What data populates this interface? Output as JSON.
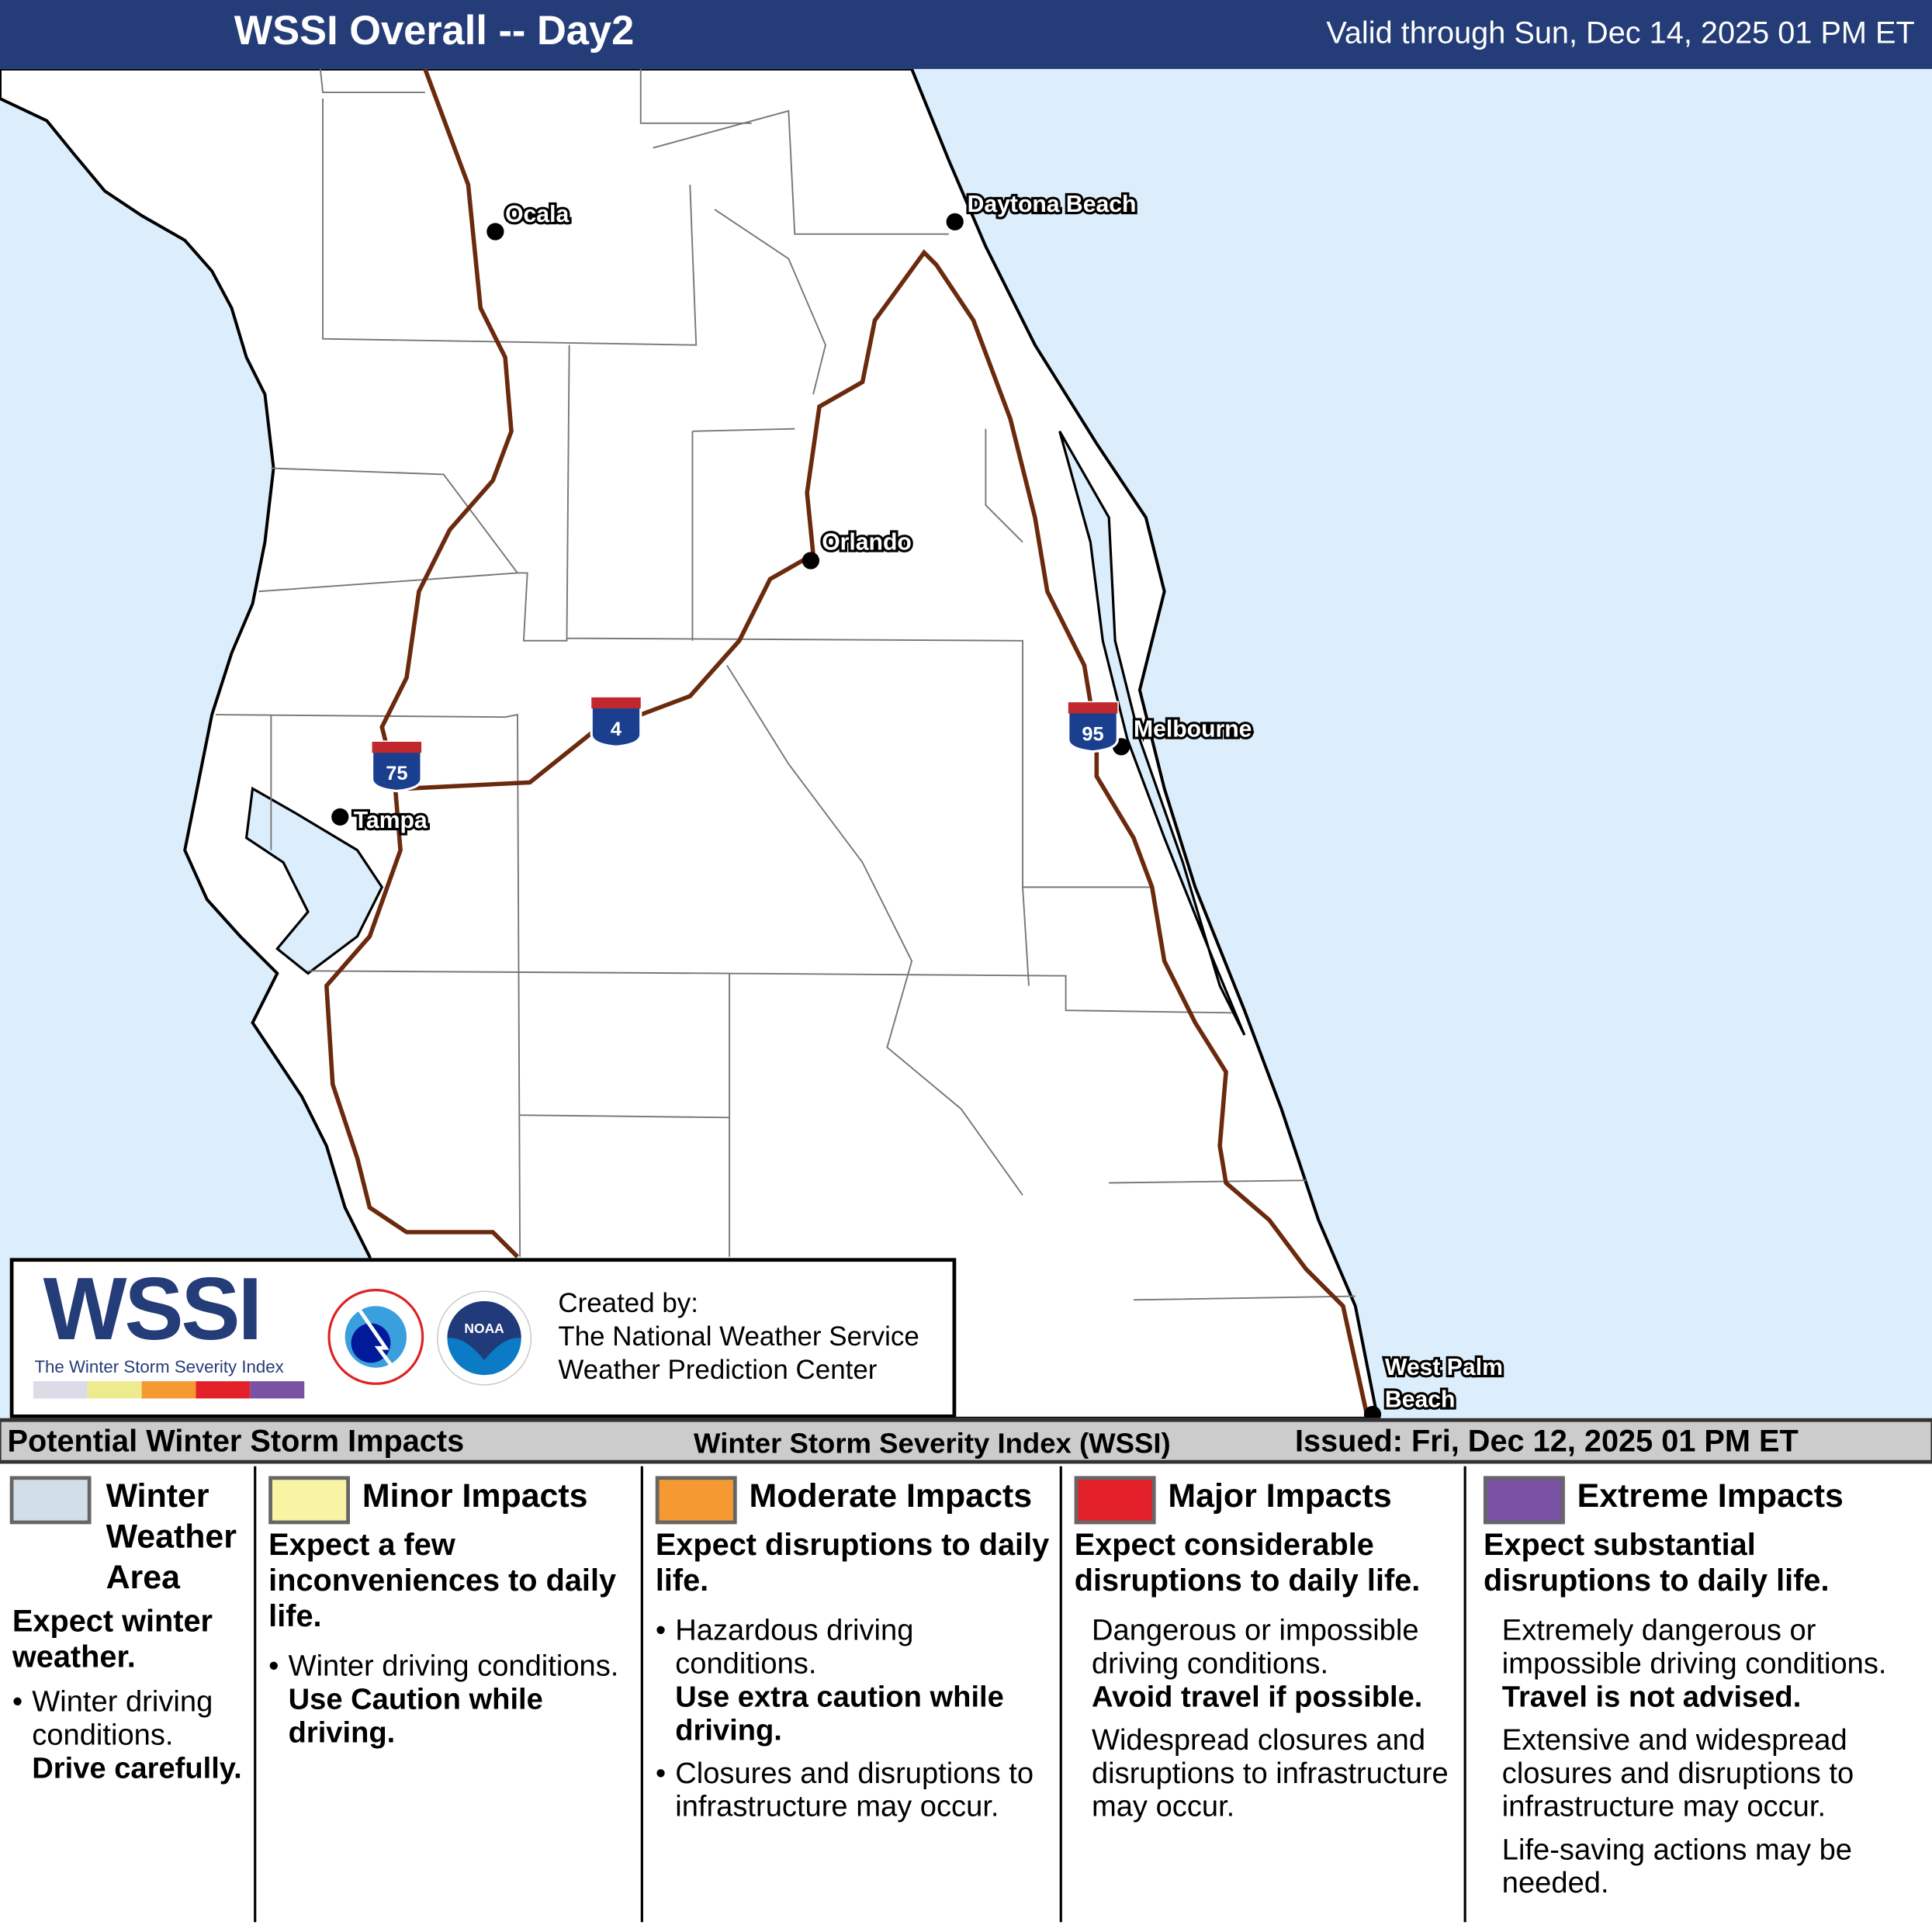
{
  "header": {
    "title": "WSSI Overall -- Day2",
    "valid": "Valid through Sun, Dec 14, 2025 01 PM ET"
  },
  "map": {
    "colors": {
      "water": "#dceefc",
      "land": "#ffffff",
      "interstate": "#6b2a0e",
      "header": "#243c78"
    },
    "cities": [
      {
        "name": "Ocala"
      },
      {
        "name": "Daytona Beach"
      },
      {
        "name": "Orlando"
      },
      {
        "name": "Melbourne"
      },
      {
        "name": "Tampa"
      },
      {
        "name": "West Palm"
      },
      {
        "name": "Beach"
      }
    ],
    "shields": [
      {
        "label": "75"
      },
      {
        "label": "4"
      },
      {
        "label": "95"
      }
    ]
  },
  "credit": {
    "logo": "WSSI",
    "logo_sub": "The Winter Storm Severity Index",
    "created_by": "Created by:",
    "org1": "The National Weather Service",
    "org2": "Weather Prediction Center",
    "nws_logo": "NATIONAL WEATHER SERVICE",
    "noaa_logo": "NOAA"
  },
  "strip": {
    "left": "Potential Winter Storm Impacts",
    "center": "Winter Storm Severity Index (WSSI)",
    "right": "Issued: Fri, Dec 12, 2025 01 PM ET"
  },
  "legend": [
    {
      "title": "Winter Weather Area",
      "color": "#d3dfe8",
      "lead": "Expect winter weather.",
      "bullet": "Winter driving conditions.",
      "bold": "Drive carefully."
    },
    {
      "title": "Minor Impacts",
      "color": "#f8f4a3",
      "lead": "Expect a few inconveniences to daily life.",
      "bullet": "Winter driving conditions.",
      "bold": "Use Caution while driving."
    },
    {
      "title": "Moderate Impacts",
      "color": "#f59a32",
      "lead": "Expect disruptions to daily life.",
      "bullet": "Hazardous driving conditions.",
      "bold": "Use extra caution while driving.",
      "bullet2": "Closures and disruptions to infrastructure may occur."
    },
    {
      "title": "Major Impacts",
      "color": "#e4212b",
      "lead": "Expect considerable disruptions to daily life.",
      "text": "Dangerous or impossible driving conditions.",
      "bold": "Avoid travel if possible.",
      "text2": "Widespread closures and disruptions to infrastructure may occur."
    },
    {
      "title": "Extreme Impacts",
      "color": "#7a52a3",
      "lead": "Expect substantial disruptions to daily life.",
      "text": "Extremely dangerous or impossible driving conditions.",
      "bold": "Travel is not advised.",
      "text2": "Extensive and widespread closures and disruptions to infrastructure may occur.",
      "text3": "Life-saving actions may be needed."
    }
  ]
}
